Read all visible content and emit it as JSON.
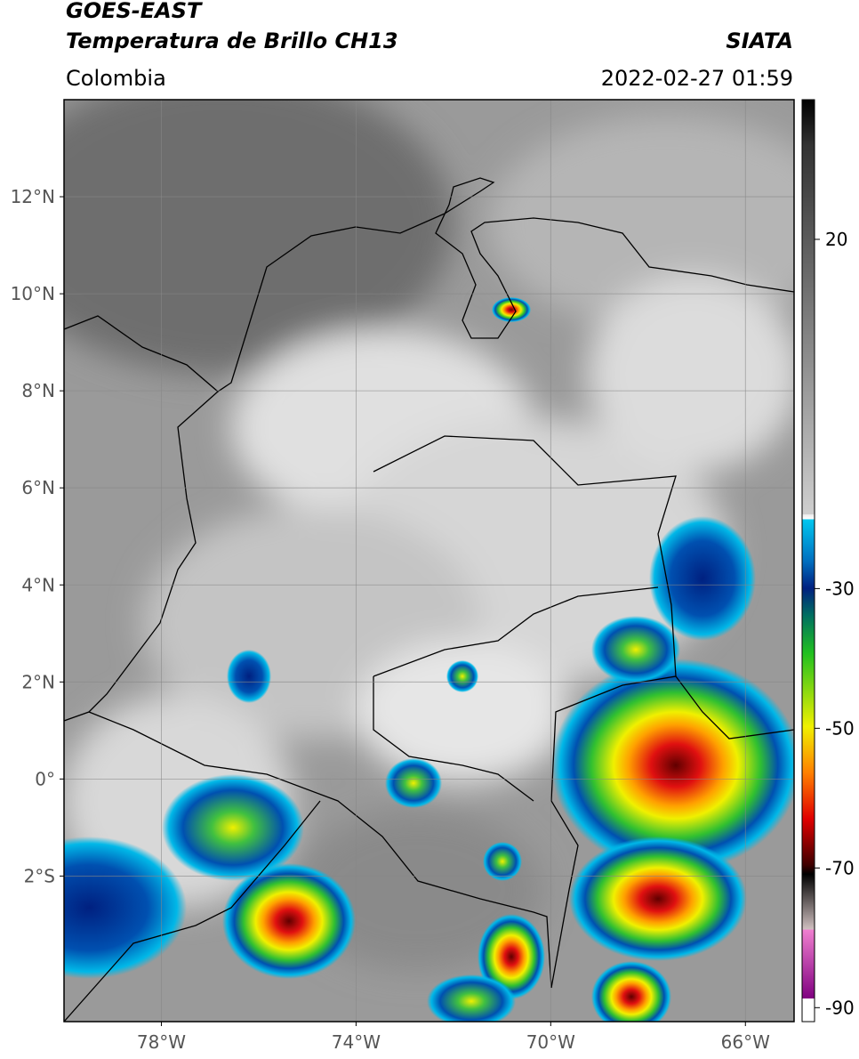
{
  "header": {
    "title": "GOES-EAST",
    "subtitle": "Temperatura de Brillo CH13",
    "source": "SIATA",
    "region": "Colombia",
    "datetime": "2022-02-27 01:59"
  },
  "map": {
    "xlim": [
      -80,
      -65
    ],
    "ylim": [
      -5,
      14
    ],
    "xticks": [
      {
        "value": -78,
        "label": "78°W"
      },
      {
        "value": -74,
        "label": "74°W"
      },
      {
        "value": -70,
        "label": "70°W"
      },
      {
        "value": -66,
        "label": "66°W"
      }
    ],
    "yticks": [
      {
        "value": 12,
        "label": "12°N"
      },
      {
        "value": 10,
        "label": "10°N"
      },
      {
        "value": 8,
        "label": "8°N"
      },
      {
        "value": 6,
        "label": "6°N"
      },
      {
        "value": 4,
        "label": "4°N"
      },
      {
        "value": 2,
        "label": "2°N"
      },
      {
        "value": 0,
        "label": "0°"
      },
      {
        "value": -2,
        "label": "2°S"
      }
    ],
    "grid": true
  },
  "colorbar": {
    "lim": [
      -92,
      40
    ],
    "ticks": [
      20,
      -30,
      -50,
      -70,
      -90
    ]
  }
}
